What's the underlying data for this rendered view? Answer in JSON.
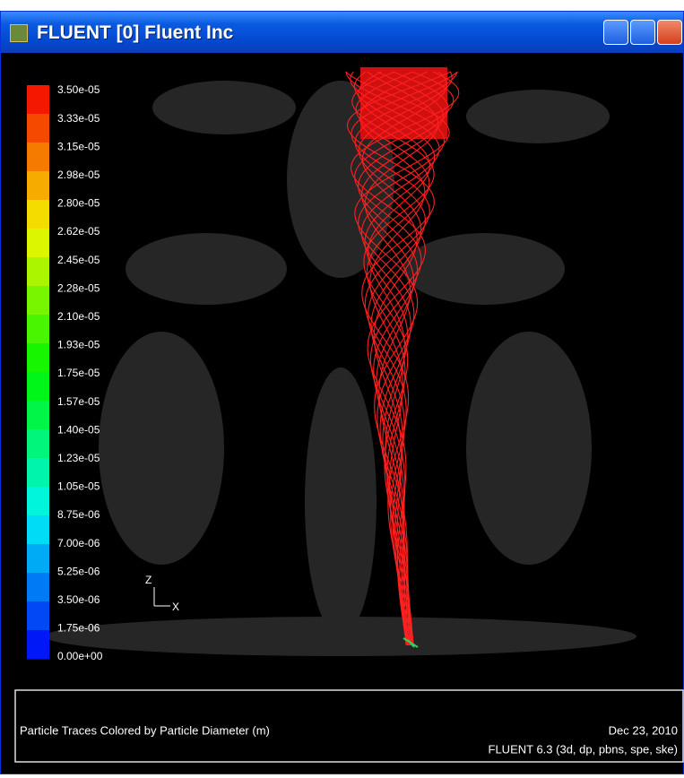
{
  "window": {
    "title": "FLUENT [0] Fluent Inc"
  },
  "colorbar": {
    "labels": [
      "3.50e-05",
      "3.33e-05",
      "3.15e-05",
      "2.98e-05",
      "2.80e-05",
      "2.62e-05",
      "2.45e-05",
      "2.28e-05",
      "2.10e-05",
      "1.93e-05",
      "1.75e-05",
      "1.57e-05",
      "1.40e-05",
      "1.23e-05",
      "1.05e-05",
      "8.75e-06",
      "7.00e-06",
      "5.25e-06",
      "3.50e-06",
      "1.75e-06",
      "0.00e+00"
    ]
  },
  "axes": {
    "z": "Z",
    "x": "X"
  },
  "footer": {
    "description": "Particle Traces Colored by Particle Diameter (m)",
    "date": "Dec 23, 2010",
    "version": "FLUENT 6.3 (3d, dp, pbns, spe, ske)"
  }
}
